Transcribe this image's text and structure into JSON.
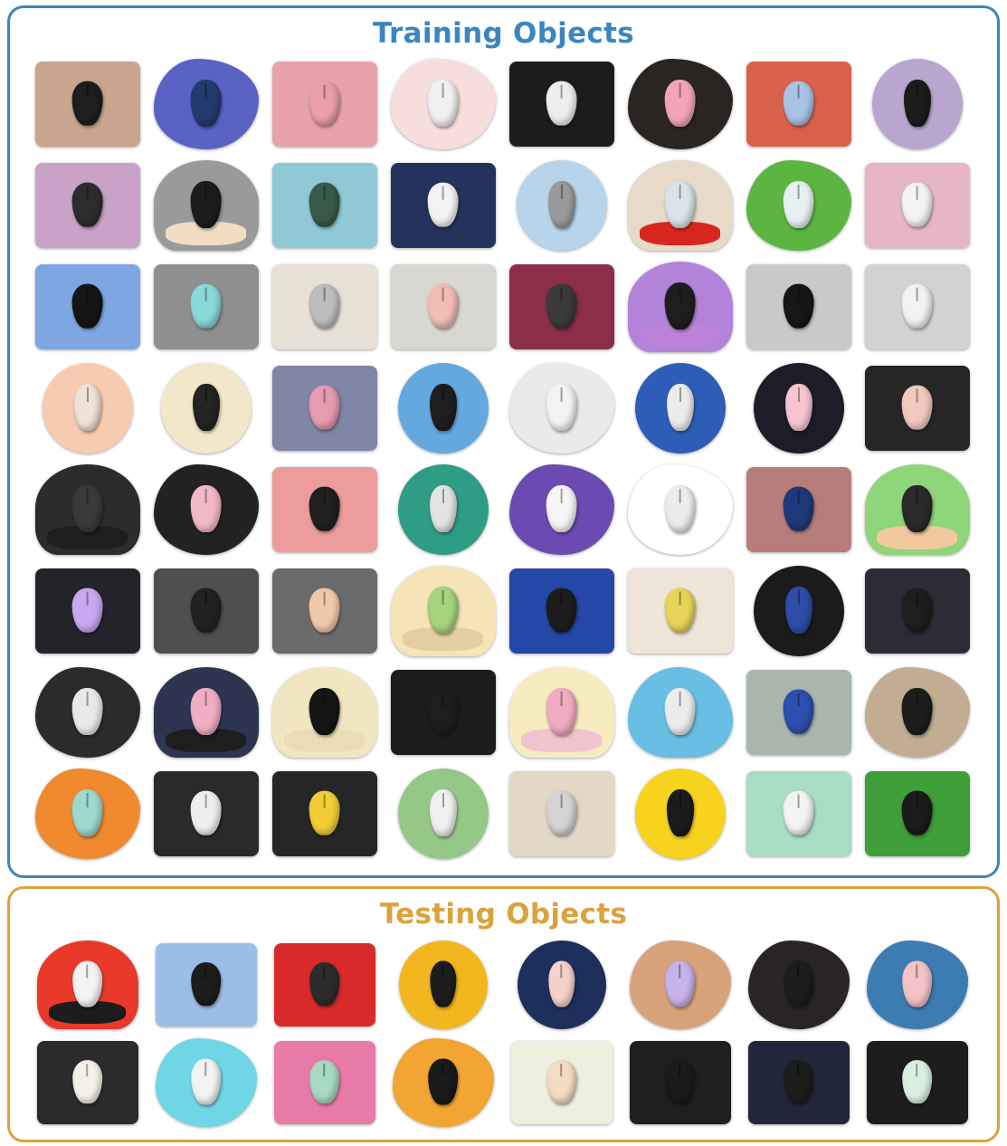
{
  "training": {
    "title": "Training Objects",
    "color": "#3a86c1",
    "objects": [
      {
        "pad": "#c9a48f",
        "mouse": "#1e1e1e",
        "shape": "rect"
      },
      {
        "pad": "#5a62c4",
        "mouse": "#233a6e",
        "shape": "blob"
      },
      {
        "pad": "#e7a3a7",
        "mouse": "#eaa0a6",
        "shape": "rect"
      },
      {
        "pad": "#f6dedd",
        "mouse": "#f0f0f0",
        "shape": "blob"
      },
      {
        "pad": "#1c1c1c",
        "mouse": "#eeeeee",
        "shape": "rect"
      },
      {
        "pad": "#2a2523",
        "mouse": "#f1a3b9",
        "shape": "blob"
      },
      {
        "pad": "#d9614a",
        "mouse": "#a9c3e6",
        "shape": "rect"
      },
      {
        "pad": "#b8a6cf",
        "mouse": "#1c1c1c",
        "shape": "round"
      },
      {
        "pad": "#c9a3c7",
        "mouse": "#2d2d2d",
        "shape": "rect"
      },
      {
        "pad": "#9a9a9a",
        "mouse": "#1d1d1d",
        "shape": "wrist",
        "rest": "#f2dcc2"
      },
      {
        "pad": "#8fc9d8",
        "mouse": "#3a5a48",
        "shape": "rect"
      },
      {
        "pad": "#23335c",
        "mouse": "#f2f2f2",
        "shape": "rect"
      },
      {
        "pad": "#b8d4ea",
        "mouse": "#9a9a9a",
        "shape": "round"
      },
      {
        "pad": "#e7dac9",
        "mouse": "#d8e4ea",
        "shape": "wrist",
        "rest": "#d8261f"
      },
      {
        "pad": "#5bb540",
        "mouse": "#e8f0f2",
        "shape": "blob"
      },
      {
        "pad": "#e7b6c4",
        "mouse": "#f3f3f3",
        "shape": "rect"
      },
      {
        "pad": "#7ea6e3",
        "mouse": "#151515",
        "shape": "rect"
      },
      {
        "pad": "#8f8f8f",
        "mouse": "#88d9da",
        "shape": "rect"
      },
      {
        "pad": "#e8e2d6",
        "mouse": "#bdbdbd",
        "shape": "rect"
      },
      {
        "pad": "#d9d7d1",
        "mouse": "#f2bdb5",
        "shape": "rect"
      },
      {
        "pad": "#8a2e4a",
        "mouse": "#3b3b3b",
        "shape": "rect"
      },
      {
        "pad": "#b383d9",
        "mouse": "#1e1e1e",
        "shape": "wrist",
        "rest": "#bb82d8"
      },
      {
        "pad": "#c9c9c9",
        "mouse": "#161616",
        "shape": "rect"
      },
      {
        "pad": "#d2d2d2",
        "mouse": "#f2f2f2",
        "shape": "rect"
      },
      {
        "pad": "#f7cbb1",
        "mouse": "#f0e2d8",
        "shape": "round"
      },
      {
        "pad": "#f3e7c9",
        "mouse": "#242424",
        "shape": "round"
      },
      {
        "pad": "#7f86a6",
        "mouse": "#e79bb0",
        "shape": "rect"
      },
      {
        "pad": "#63a8df",
        "mouse": "#1e1e1e",
        "shape": "round"
      },
      {
        "pad": "#eaeaea",
        "mouse": "#f2f2f2",
        "shape": "blob"
      },
      {
        "pad": "#2e5db7",
        "mouse": "#ececec",
        "shape": "round"
      },
      {
        "pad": "#1d1d2a",
        "mouse": "#f7c5d2",
        "shape": "round"
      },
      {
        "pad": "#262626",
        "mouse": "#f1c9bf",
        "shape": "rect"
      },
      {
        "pad": "#2c2c2c",
        "mouse": "#3a3a3a",
        "shape": "wrist",
        "rest": "#1e1e1e"
      },
      {
        "pad": "#222222",
        "mouse": "#f3b8c8",
        "shape": "blob"
      },
      {
        "pad": "#ed9c9c",
        "mouse": "#202020",
        "shape": "rect"
      },
      {
        "pad": "#2f9c86",
        "mouse": "#e3e3e3",
        "shape": "round"
      },
      {
        "pad": "#6c4ab2",
        "mouse": "#f5f5f5",
        "shape": "blob"
      },
      {
        "pad": "#ffffff",
        "mouse": "#ececec",
        "shape": "blob"
      },
      {
        "pad": "#b67d7b",
        "mouse": "#1f3a7a",
        "shape": "rect"
      },
      {
        "pad": "#8fd57a",
        "mouse": "#2a2a2a",
        "shape": "wrist",
        "rest": "#f2c99e"
      },
      {
        "pad": "#23232a",
        "mouse": "#c9a8f1",
        "shape": "rect"
      },
      {
        "pad": "#4f4f4f",
        "mouse": "#222222",
        "shape": "rect"
      },
      {
        "pad": "#6b6b6b",
        "mouse": "#f1c9aa",
        "shape": "rect"
      },
      {
        "pad": "#f5e4b7",
        "mouse": "#a6d47d",
        "shape": "wrist",
        "rest": "#e6cf9e"
      },
      {
        "pad": "#2348a8",
        "mouse": "#1d1d1d",
        "shape": "rect"
      },
      {
        "pad": "#eee5d8",
        "mouse": "#e8d35a",
        "shape": "rect"
      },
      {
        "pad": "#1b1b1b",
        "mouse": "#2f4da8",
        "shape": "round"
      },
      {
        "pad": "#2c2c36",
        "mouse": "#1e1e1e",
        "shape": "rect"
      },
      {
        "pad": "#2b2b2b",
        "mouse": "#e9e9e9",
        "shape": "blob"
      },
      {
        "pad": "#2d3550",
        "mouse": "#f0aec3",
        "shape": "wrist",
        "rest": "#1e1e1e"
      },
      {
        "pad": "#f2e6c2",
        "mouse": "#151515",
        "shape": "wrist",
        "rest": "#eadcb6"
      },
      {
        "pad": "#1c1c1c",
        "mouse": "#1e1e1e",
        "shape": "rect"
      },
      {
        "pad": "#f7ebc0",
        "mouse": "#f0adc1",
        "shape": "wrist",
        "rest": "#f0c3ce"
      },
      {
        "pad": "#68bfe3",
        "mouse": "#ececec",
        "shape": "cloud"
      },
      {
        "pad": "#a9b6ad",
        "mouse": "#2d4fb0",
        "shape": "rect"
      },
      {
        "pad": "#c2ac92",
        "mouse": "#1d1d1d",
        "shape": "blob"
      },
      {
        "pad": "#f08a2e",
        "mouse": "#9dd9cf",
        "shape": "blob"
      },
      {
        "pad": "#2a2a2a",
        "mouse": "#eeeeee",
        "shape": "rect"
      },
      {
        "pad": "#262626",
        "mouse": "#f2cd35",
        "shape": "rect"
      },
      {
        "pad": "#95c787",
        "mouse": "#f0f0f0",
        "shape": "round"
      },
      {
        "pad": "#e3d7c5",
        "mouse": "#d4d4d4",
        "shape": "rect"
      },
      {
        "pad": "#f7d31e",
        "mouse": "#1b1b1b",
        "shape": "round"
      },
      {
        "pad": "#a8dcc3",
        "mouse": "#f3f3f3",
        "shape": "rect"
      },
      {
        "pad": "#3e9e3a",
        "mouse": "#1b1b1b",
        "shape": "rect"
      }
    ]
  },
  "testing": {
    "title": "Testing Objects",
    "color": "#dba23d",
    "objects": [
      {
        "pad": "#e8392b",
        "mouse": "#f3f3f3",
        "shape": "wrist",
        "rest": "#1c1c1c"
      },
      {
        "pad": "#9cbde6",
        "mouse": "#1d1d1d",
        "shape": "rect"
      },
      {
        "pad": "#d82a2a",
        "mouse": "#2c2c2c",
        "shape": "rect"
      },
      {
        "pad": "#f2b61f",
        "mouse": "#1d1d1d",
        "shape": "round"
      },
      {
        "pad": "#1f2f5c",
        "mouse": "#f3d2c9",
        "shape": "round"
      },
      {
        "pad": "#d8a27a",
        "mouse": "#c7b2ea",
        "shape": "blob"
      },
      {
        "pad": "#2a2424",
        "mouse": "#1d1d1d",
        "shape": "blob"
      },
      {
        "pad": "#3d7bb3",
        "mouse": "#f3c3c8",
        "shape": "blob"
      },
      {
        "pad": "#2b2b2b",
        "mouse": "#f5f1e6",
        "shape": "rect"
      },
      {
        "pad": "#6ed6e5",
        "mouse": "#f2f2f2",
        "shape": "blob"
      },
      {
        "pad": "#e87aa8",
        "mouse": "#a8d9c3",
        "shape": "rect"
      },
      {
        "pad": "#f2a533",
        "mouse": "#1a1a1a",
        "shape": "blob"
      },
      {
        "pad": "#eef0de",
        "mouse": "#f3dcc4",
        "shape": "rect"
      },
      {
        "pad": "#1f1f1f",
        "mouse": "#1a1a1a",
        "shape": "rect"
      },
      {
        "pad": "#22263a",
        "mouse": "#1d1d1d",
        "shape": "rect"
      },
      {
        "pad": "#1d1d1d",
        "mouse": "#d9efe0",
        "shape": "rect"
      }
    ]
  }
}
